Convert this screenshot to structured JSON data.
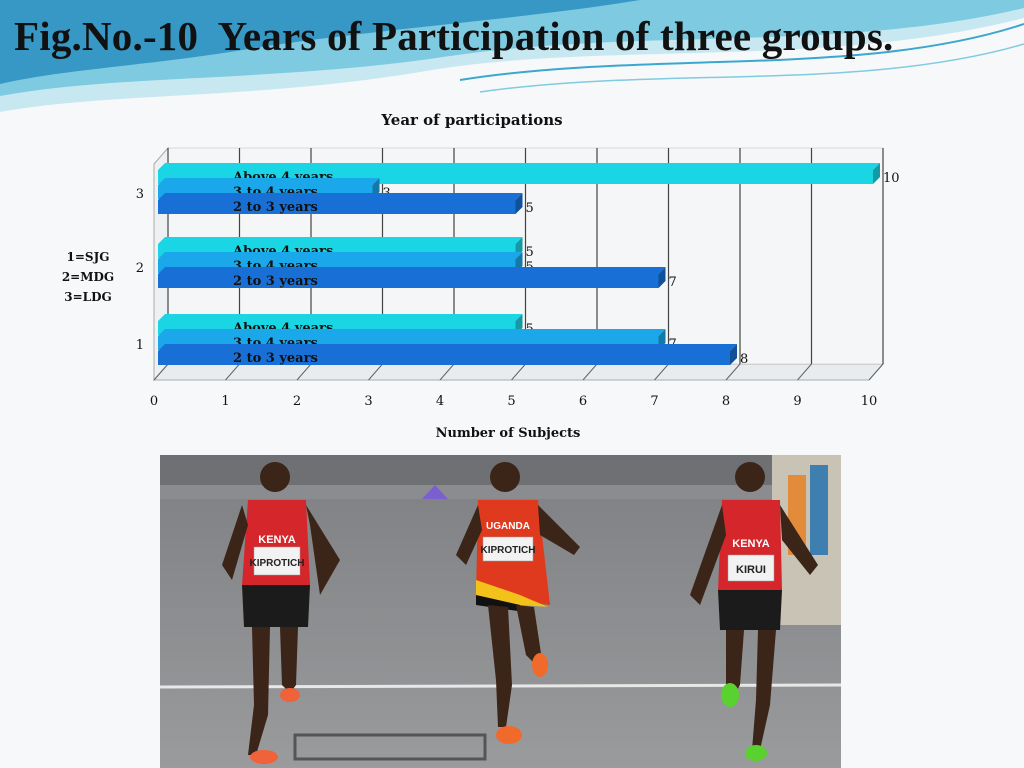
{
  "slide": {
    "title": "Fig.No.-10  Years of Participation of three groups."
  },
  "group_key": [
    "1=SJG",
    "2=MDG",
    "3=LDG"
  ],
  "colors": {
    "above_4": "#1ad6e4",
    "three_to_4": "#1ba8ea",
    "two_to_3": "#1870d6",
    "wave_dark": "#2d9bc4",
    "wave_light": "#b7e3ee"
  },
  "chart_data": {
    "type": "bar",
    "orientation": "horizontal",
    "title": "Year of participations",
    "xlabel": "Number of Subjects",
    "ylabel": "",
    "xlim": [
      0,
      10
    ],
    "x_ticks": [
      0,
      1,
      2,
      3,
      4,
      5,
      6,
      7,
      8,
      9,
      10
    ],
    "categories": [
      "1",
      "2",
      "3"
    ],
    "grid": true,
    "legend": "none",
    "series": [
      {
        "name": "2 to 3 years",
        "values": [
          8,
          7,
          5
        ]
      },
      {
        "name": "3 to 4 years",
        "values": [
          7,
          5,
          3
        ]
      },
      {
        "name": "Above 4 years",
        "values": [
          5,
          5,
          10
        ]
      }
    ]
  },
  "photo": {
    "bibs": [
      "KIPROTICH",
      "KIPROTICH",
      "KIRUI"
    ],
    "jersey_texts": [
      "KENYA",
      "UGANDA",
      "KENYA"
    ]
  }
}
